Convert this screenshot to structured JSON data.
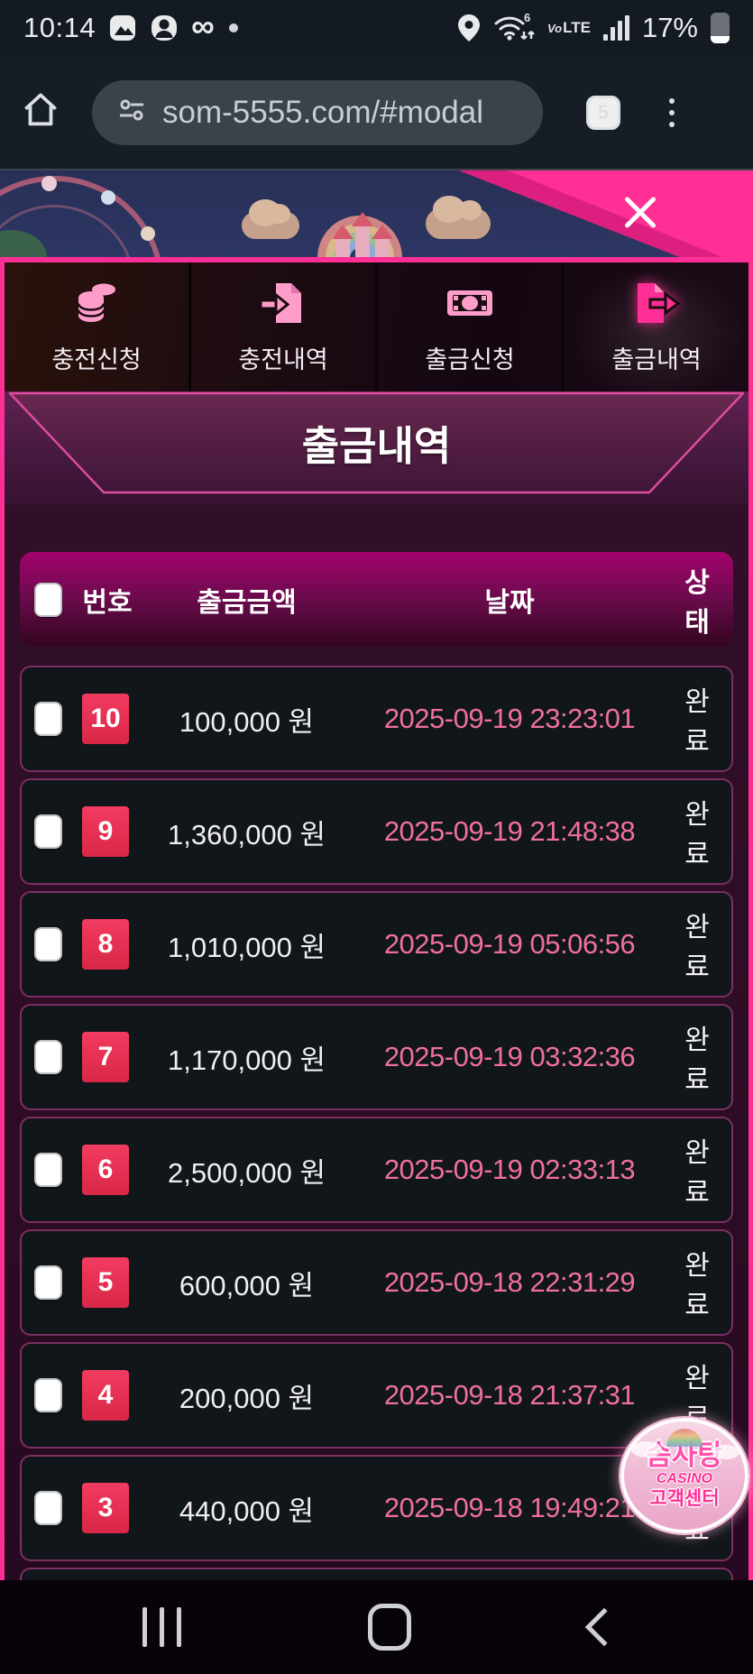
{
  "status_bar": {
    "time": "10:14",
    "battery_percent": "17%",
    "volte_label": "VoLTE",
    "icons": [
      "image-icon",
      "avatar-icon",
      "infinity-icon",
      "notification-dot",
      "location-icon",
      "wifi6-icon",
      "signal-icon",
      "battery-icon"
    ]
  },
  "browser": {
    "url": "som-5555.com/#modal",
    "tab_count": "5"
  },
  "modal": {
    "tabs": [
      {
        "label": "충전신청",
        "icon": "coins-icon",
        "active": false
      },
      {
        "label": "충전내역",
        "icon": "file-import-icon",
        "active": false
      },
      {
        "label": "출금신청",
        "icon": "banknote-icon",
        "active": false
      },
      {
        "label": "출금내역",
        "icon": "file-export-icon",
        "active": true
      }
    ],
    "title": "출금내역",
    "table": {
      "headers": [
        "번호",
        "출금금액",
        "날짜",
        "상태"
      ],
      "rows": [
        {
          "no": "10",
          "amount": "100,000 원",
          "date": "2025-09-19 23:23:01",
          "status": "완료"
        },
        {
          "no": "9",
          "amount": "1,360,000 원",
          "date": "2025-09-19 21:48:38",
          "status": "완료"
        },
        {
          "no": "8",
          "amount": "1,010,000 원",
          "date": "2025-09-19 05:06:56",
          "status": "완료"
        },
        {
          "no": "7",
          "amount": "1,170,000 원",
          "date": "2025-09-19 03:32:36",
          "status": "완료"
        },
        {
          "no": "6",
          "amount": "2,500,000 원",
          "date": "2025-09-19 02:33:13",
          "status": "완료"
        },
        {
          "no": "5",
          "amount": "600,000 원",
          "date": "2025-09-18 22:31:29",
          "status": "완료"
        },
        {
          "no": "4",
          "amount": "200,000 원",
          "date": "2025-09-18 21:37:31",
          "status": "완료"
        },
        {
          "no": "3",
          "amount": "440,000 원",
          "date": "2025-09-18 19:49:21",
          "status": "완료"
        }
      ]
    },
    "floating_badge": {
      "line1": "솜사탕",
      "line2": "CASINO",
      "line3": "고객센터"
    }
  },
  "colors": {
    "accent_pink": "#ff2f95",
    "date_pink": "#f06f9f",
    "badge_red": "#e73053",
    "inactive_icon_pink": "#ff9dca"
  }
}
